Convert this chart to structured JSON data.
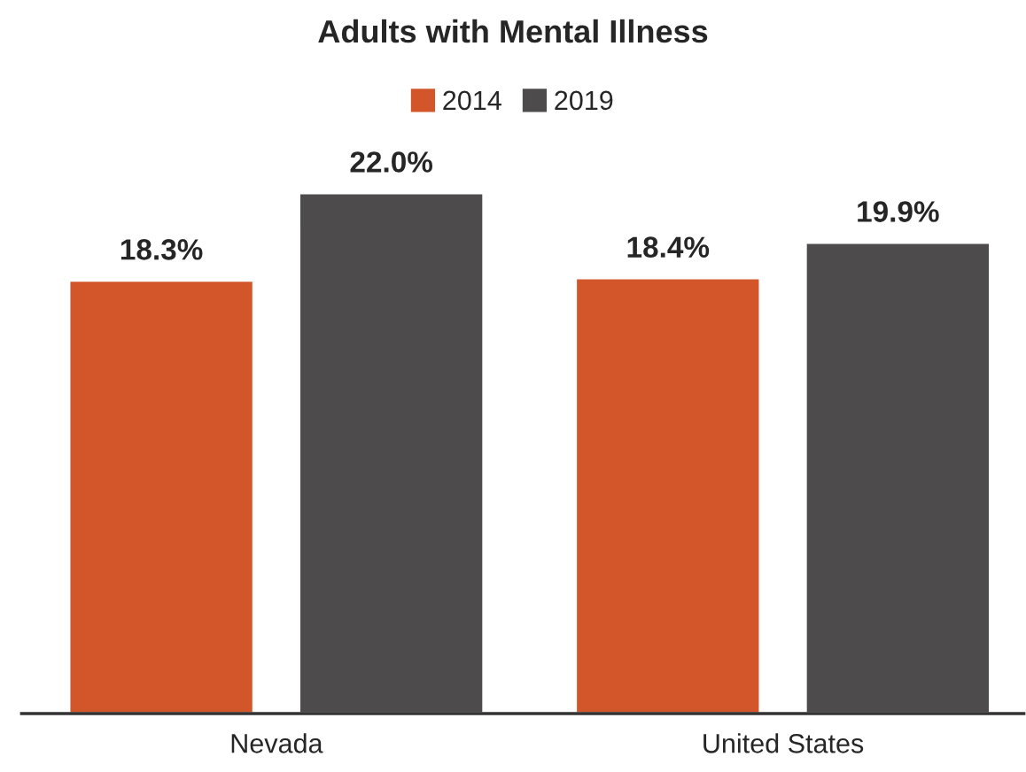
{
  "chart_data": {
    "type": "bar",
    "title": "Adults with Mental Illness",
    "categories": [
      "Nevada",
      "United States"
    ],
    "series": [
      {
        "name": "2014",
        "color": "#d2562a",
        "values": [
          18.3,
          18.4
        ],
        "value_labels": [
          "18.3%",
          "18.4%"
        ]
      },
      {
        "name": "2019",
        "color": "#4d4b4b",
        "values": [
          22.0,
          19.9
        ],
        "value_labels": [
          "22.0%",
          "19.9%"
        ]
      }
    ],
    "tick_labels": "x",
    "legend": "top",
    "grid": false
  }
}
